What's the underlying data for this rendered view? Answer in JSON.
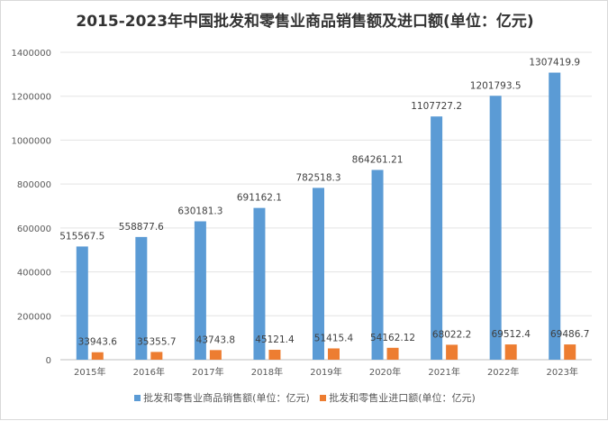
{
  "chart_data": {
    "type": "bar",
    "title": "2015-2023年中国批发和零售业商品销售额及进口额(单位：亿元)",
    "categories": [
      "2015年",
      "2016年",
      "2017年",
      "2018年",
      "2019年",
      "2020年",
      "2021年",
      "2022年",
      "2023年"
    ],
    "series": [
      {
        "name": "批发和零售业商品销售额(单位：亿元)",
        "color": "#5b9bd5",
        "values": [
          515567.5,
          558877.6,
          630181.3,
          691162.1,
          782518.3,
          864261.21,
          1107727.2,
          1201793.5,
          1307419.9
        ],
        "labels": [
          "515567.5",
          "558877.6",
          "630181.3",
          "691162.1",
          "782518.3",
          "864261.21",
          "1107727.2",
          "1201793.5",
          "1307419.9"
        ]
      },
      {
        "name": "批发和零售业进口额(单位：亿元)",
        "color": "#ed7d31",
        "values": [
          33943.6,
          35355.7,
          43743.8,
          45121.4,
          51415.4,
          54162.12,
          68022.2,
          69512.4,
          69486.7
        ],
        "labels": [
          "33943.6",
          "35355.7",
          "43743.8",
          "45121.4",
          "51415.4",
          "54162.12",
          "68022.2",
          "69512.4",
          "69486.7"
        ]
      }
    ],
    "ylim": [
      0,
      1400000
    ],
    "yticks": [
      "0",
      "200000",
      "400000",
      "600000",
      "800000",
      "1000000",
      "1200000",
      "1400000"
    ],
    "grid": true,
    "legend": "bottom"
  }
}
